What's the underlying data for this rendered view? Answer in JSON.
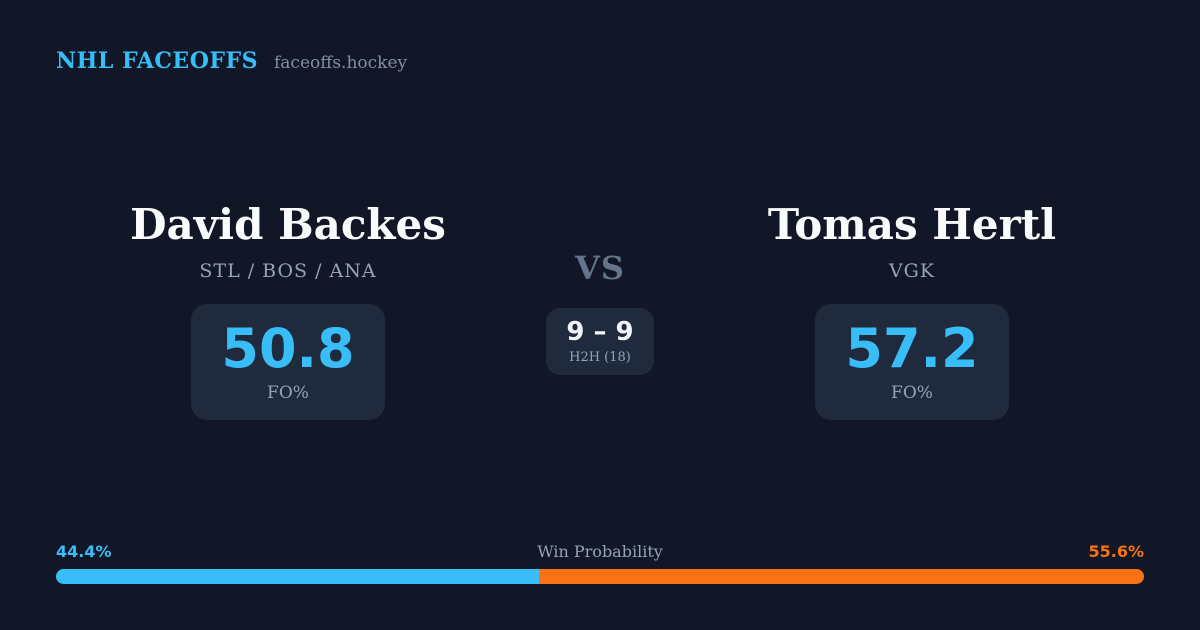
{
  "header": {
    "brand": "NHL FACEOFFS",
    "site": "faceoffs.hockey"
  },
  "matchup": {
    "vs_label": "VS",
    "player_left": {
      "name": "David Backes",
      "teams": "STL / BOS / ANA",
      "fo_pct": "50.8",
      "stat_label": "FO%"
    },
    "player_right": {
      "name": "Tomas Hertl",
      "teams": "VGK",
      "fo_pct": "57.2",
      "stat_label": "FO%"
    },
    "h2h": {
      "score": "9 – 9",
      "label": "H2H (18)"
    }
  },
  "win_probability": {
    "title": "Win Probability",
    "left_pct_label": "44.4%",
    "right_pct_label": "55.6%",
    "left_value": 44.4,
    "right_value": 55.6
  },
  "colors": {
    "background": "#111726",
    "card": "#1f2a3c",
    "accent_blue": "#38bdf8",
    "accent_orange": "#f97316",
    "text_primary": "#f8fafc",
    "text_secondary": "#94a3b8"
  }
}
